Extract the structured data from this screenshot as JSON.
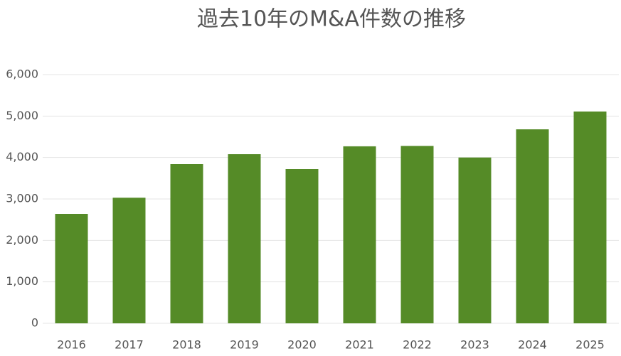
{
  "chart_data": {
    "type": "bar",
    "title": "過去10年のM&A件数の推移",
    "categories": [
      "2016",
      "2017",
      "2018",
      "2019",
      "2020",
      "2021",
      "2022",
      "2023",
      "2024",
      "2025"
    ],
    "values": [
      2640,
      3030,
      3840,
      4080,
      3720,
      4270,
      4280,
      4000,
      4680,
      5110
    ],
    "color": "#558b27",
    "ylim": [
      0,
      6000
    ],
    "yticks": [
      0,
      {
        "value": 1000,
        "label": "1,000"
      },
      {
        "value": 2000,
        "label": "2,000"
      },
      {
        "value": 3000,
        "label": "3,000"
      },
      {
        "value": 4000,
        "label": "4,000"
      },
      {
        "value": 5000,
        "label": "5,000"
      },
      {
        "value": 6000,
        "label": "6,000"
      }
    ],
    "grid": true
  }
}
